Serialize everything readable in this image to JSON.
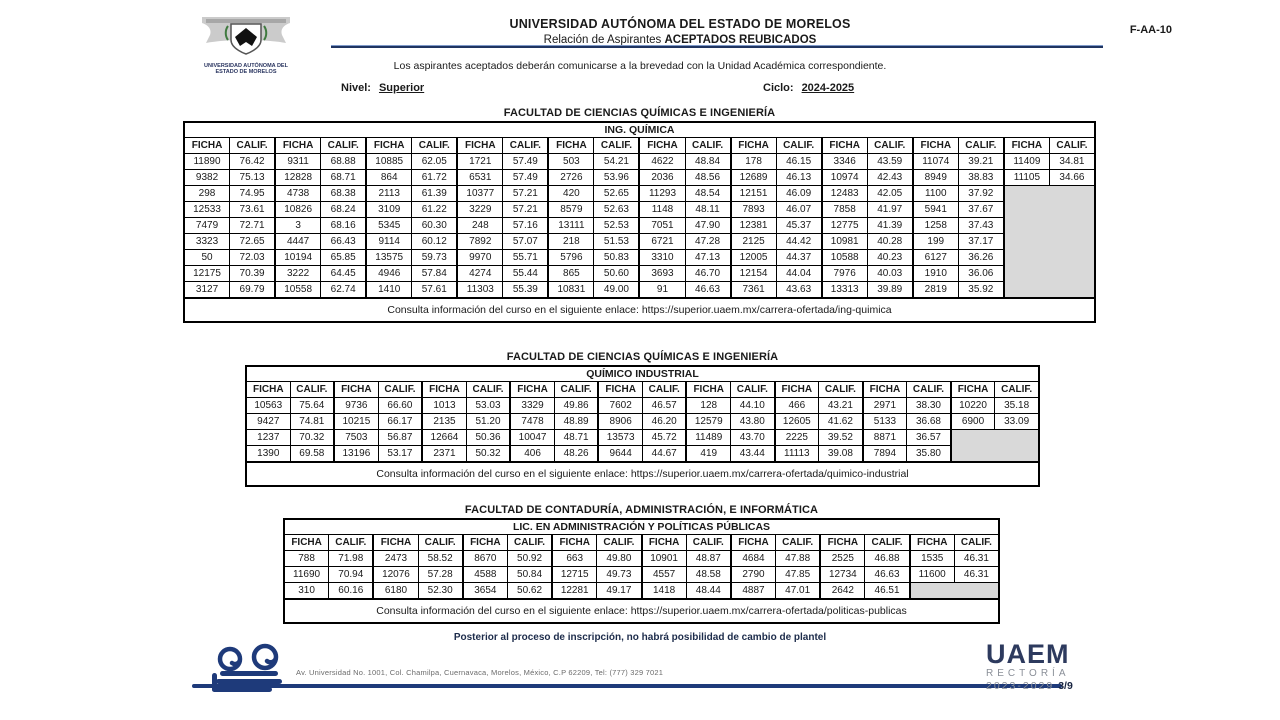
{
  "colors": {
    "navy": "#1f3461",
    "logo_navy": "#1e3a7a",
    "empty_cell_gray": "#d9d9d9"
  },
  "header": {
    "university": "UNIVERSIDAD AUTÓNOMA DEL ESTADO DE MORELOS",
    "subtitle_prefix": "Relación de Aspirantes ",
    "subtitle_bold": "ACEPTADOS REUBICADOS",
    "form_code": "F-AA-10",
    "notice": "Los aspirantes aceptados deberán comunicarse a la brevedad con la Unidad Académica correspondiente.",
    "nivel_label": "Nivel:",
    "nivel_value": "Superior",
    "ciclo_label": "Ciclo:",
    "ciclo_value": "2024-2025",
    "seal_caption_line1": "UNIVERSIDAD AUTÓNOMA DEL",
    "seal_caption_line2": "ESTADO DE MORELOS"
  },
  "column_headers": {
    "ficha": "FICHA",
    "calif": "CALIF."
  },
  "tables": [
    {
      "faculty": "FACULTAD DE CIENCIAS QUÍMICAS E INGENIERÍA",
      "program": "ING. QUÍMICA",
      "pairs": 10,
      "rows": [
        [
          [
            "11890",
            "76.42"
          ],
          [
            "9311",
            "68.88"
          ],
          [
            "10885",
            "62.05"
          ],
          [
            "1721",
            "57.49"
          ],
          [
            "503",
            "54.21"
          ],
          [
            "4622",
            "48.84"
          ],
          [
            "178",
            "46.15"
          ],
          [
            "3346",
            "43.59"
          ],
          [
            "11074",
            "39.21"
          ],
          [
            "11409",
            "34.81"
          ]
        ],
        [
          [
            "9382",
            "75.13"
          ],
          [
            "12828",
            "68.71"
          ],
          [
            "864",
            "61.72"
          ],
          [
            "6531",
            "57.49"
          ],
          [
            "2726",
            "53.96"
          ],
          [
            "2036",
            "48.56"
          ],
          [
            "12689",
            "46.13"
          ],
          [
            "10974",
            "42.43"
          ],
          [
            "8949",
            "38.83"
          ],
          [
            "11105",
            "34.66"
          ]
        ],
        [
          [
            "298",
            "74.95"
          ],
          [
            "4738",
            "68.38"
          ],
          [
            "2113",
            "61.39"
          ],
          [
            "10377",
            "57.21"
          ],
          [
            "420",
            "52.65"
          ],
          [
            "11293",
            "48.54"
          ],
          [
            "12151",
            "46.09"
          ],
          [
            "12483",
            "42.05"
          ],
          [
            "1100",
            "37.92"
          ],
          null
        ],
        [
          [
            "12533",
            "73.61"
          ],
          [
            "10826",
            "68.24"
          ],
          [
            "3109",
            "61.22"
          ],
          [
            "3229",
            "57.21"
          ],
          [
            "8579",
            "52.63"
          ],
          [
            "1148",
            "48.11"
          ],
          [
            "7893",
            "46.07"
          ],
          [
            "7858",
            "41.97"
          ],
          [
            "5941",
            "37.67"
          ],
          null
        ],
        [
          [
            "7479",
            "72.71"
          ],
          [
            "3",
            "68.16"
          ],
          [
            "5345",
            "60.30"
          ],
          [
            "248",
            "57.16"
          ],
          [
            "13111",
            "52.53"
          ],
          [
            "7051",
            "47.90"
          ],
          [
            "12381",
            "45.37"
          ],
          [
            "12775",
            "41.39"
          ],
          [
            "1258",
            "37.43"
          ],
          null
        ],
        [
          [
            "3323",
            "72.65"
          ],
          [
            "4447",
            "66.43"
          ],
          [
            "9114",
            "60.12"
          ],
          [
            "7892",
            "57.07"
          ],
          [
            "218",
            "51.53"
          ],
          [
            "6721",
            "47.28"
          ],
          [
            "2125",
            "44.42"
          ],
          [
            "10981",
            "40.28"
          ],
          [
            "199",
            "37.17"
          ],
          null
        ],
        [
          [
            "50",
            "72.03"
          ],
          [
            "10194",
            "65.85"
          ],
          [
            "13575",
            "59.73"
          ],
          [
            "9970",
            "55.71"
          ],
          [
            "5796",
            "50.83"
          ],
          [
            "3310",
            "47.13"
          ],
          [
            "12005",
            "44.37"
          ],
          [
            "10588",
            "40.23"
          ],
          [
            "6127",
            "36.26"
          ],
          null
        ],
        [
          [
            "12175",
            "70.39"
          ],
          [
            "3222",
            "64.45"
          ],
          [
            "4946",
            "57.84"
          ],
          [
            "4274",
            "55.44"
          ],
          [
            "865",
            "50.60"
          ],
          [
            "3693",
            "46.70"
          ],
          [
            "12154",
            "44.04"
          ],
          [
            "7976",
            "40.03"
          ],
          [
            "1910",
            "36.06"
          ],
          null
        ],
        [
          [
            "3127",
            "69.79"
          ],
          [
            "10558",
            "62.74"
          ],
          [
            "1410",
            "57.61"
          ],
          [
            "11303",
            "55.39"
          ],
          [
            "10831",
            "49.00"
          ],
          [
            "91",
            "46.63"
          ],
          [
            "7361",
            "43.63"
          ],
          [
            "13313",
            "39.89"
          ],
          [
            "2819",
            "35.92"
          ],
          null
        ]
      ],
      "link_text": "Consulta información del curso en el siguiente enlace: https://superior.uaem.mx/carrera-ofertada/ing-quimica"
    },
    {
      "faculty": "FACULTAD DE CIENCIAS QUÍMICAS E INGENIERÍA",
      "program": "QUÍMICO INDUSTRIAL",
      "pairs": 9,
      "rows": [
        [
          [
            "10563",
            "75.64"
          ],
          [
            "9736",
            "66.60"
          ],
          [
            "1013",
            "53.03"
          ],
          [
            "3329",
            "49.86"
          ],
          [
            "7602",
            "46.57"
          ],
          [
            "128",
            "44.10"
          ],
          [
            "466",
            "43.21"
          ],
          [
            "2971",
            "38.30"
          ],
          [
            "10220",
            "35.18"
          ]
        ],
        [
          [
            "9427",
            "74.81"
          ],
          [
            "10215",
            "66.17"
          ],
          [
            "2135",
            "51.20"
          ],
          [
            "7478",
            "48.89"
          ],
          [
            "8906",
            "46.20"
          ],
          [
            "12579",
            "43.80"
          ],
          [
            "12605",
            "41.62"
          ],
          [
            "5133",
            "36.68"
          ],
          [
            "6900",
            "33.09"
          ]
        ],
        [
          [
            "1237",
            "70.32"
          ],
          [
            "7503",
            "56.87"
          ],
          [
            "12664",
            "50.36"
          ],
          [
            "10047",
            "48.71"
          ],
          [
            "13573",
            "45.72"
          ],
          [
            "11489",
            "43.70"
          ],
          [
            "2225",
            "39.52"
          ],
          [
            "8871",
            "36.57"
          ],
          null
        ],
        [
          [
            "1390",
            "69.58"
          ],
          [
            "13196",
            "53.17"
          ],
          [
            "2371",
            "50.32"
          ],
          [
            "406",
            "48.26"
          ],
          [
            "9644",
            "44.67"
          ],
          [
            "419",
            "43.44"
          ],
          [
            "11113",
            "39.08"
          ],
          [
            "7894",
            "35.80"
          ],
          null
        ]
      ],
      "link_text": "Consulta información del curso en el siguiente enlace: https://superior.uaem.mx/carrera-ofertada/quimico-industrial"
    },
    {
      "faculty": "FACULTAD DE CONTADURÍA, ADMINISTRACIÓN, E INFORMÁTICA",
      "program": "LIC. EN ADMINISTRACIÓN Y POLÍTICAS PÚBLICAS",
      "pairs": 8,
      "rows": [
        [
          [
            "788",
            "71.98"
          ],
          [
            "2473",
            "58.52"
          ],
          [
            "8670",
            "50.92"
          ],
          [
            "663",
            "49.80"
          ],
          [
            "10901",
            "48.87"
          ],
          [
            "4684",
            "47.88"
          ],
          [
            "2525",
            "46.88"
          ],
          [
            "1535",
            "46.31"
          ]
        ],
        [
          [
            "11690",
            "70.94"
          ],
          [
            "12076",
            "57.28"
          ],
          [
            "4588",
            "50.84"
          ],
          [
            "12715",
            "49.73"
          ],
          [
            "4557",
            "48.58"
          ],
          [
            "2790",
            "47.85"
          ],
          [
            "12734",
            "46.63"
          ],
          [
            "11600",
            "46.31"
          ]
        ],
        [
          [
            "310",
            "60.16"
          ],
          [
            "6180",
            "52.30"
          ],
          [
            "3654",
            "50.62"
          ],
          [
            "12281",
            "49.17"
          ],
          [
            "1418",
            "48.44"
          ],
          [
            "4887",
            "47.01"
          ],
          [
            "2642",
            "46.51"
          ],
          null
        ]
      ],
      "link_text": "Consulta información del curso en el siguiente enlace: https://superior.uaem.mx/carrera-ofertada/politicas-publicas"
    }
  ],
  "footer": {
    "no_change_notice": "Posterior al proceso de inscripción, no habrá posibilidad de cambio de plantel",
    "address": "Av. Universidad No. 1001, Col. Chamilpa, Cuernavaca, Morelos, México, C.P 62209, Tel: (777) 329 7021",
    "brand_name": "UAEM",
    "brand_sub1": "RECTORÍA",
    "brand_sub2": "2023-2029",
    "page_number": "3/9"
  }
}
